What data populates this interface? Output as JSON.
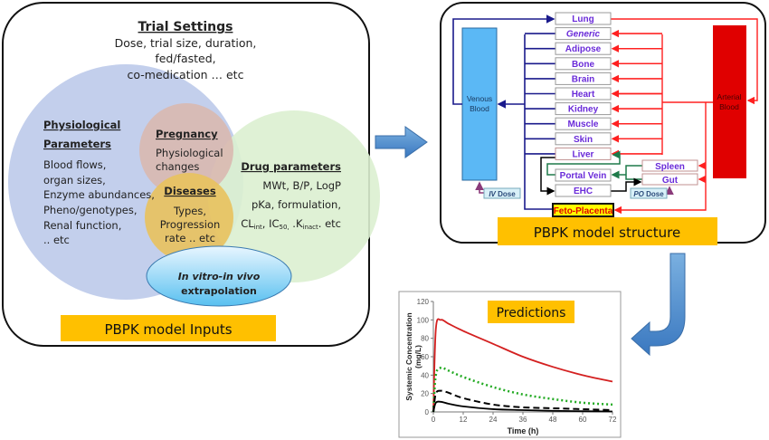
{
  "inputs_panel": {
    "trial_settings": {
      "title": "Trial Settings",
      "lines": [
        "Dose, trial size, duration,",
        "fed/fasted,",
        "co-medication  … etc"
      ]
    },
    "physiological": {
      "title_1": "Physiological",
      "title_2": "Parameters",
      "lines": [
        "Blood flows,",
        "organ sizes,",
        "Enzyme abundances,",
        "Pheno/genotypes,",
        "Renal function,",
        " .. etc"
      ]
    },
    "pregnancy": {
      "title": "Pregnancy",
      "lines": [
        "Physiological",
        "changes"
      ]
    },
    "diseases": {
      "title": "Diseases",
      "lines": [
        "Types,",
        "Progression",
        "rate .. etc"
      ]
    },
    "drug": {
      "title": "Drug parameters",
      "lines": [
        "MWt, B/P, LogP",
        "pKa, formulation,"
      ],
      "line3_cl": "CL",
      "line3_cl_sub": "int",
      "line3_ic": ", IC",
      "line3_ic_sub": "50,",
      "line3_k": " .K",
      "line3_k_sub": "inact",
      "line3_end": ". etc"
    },
    "ivive": {
      "line1": "In vitro-in vivo",
      "line2": "extrapolation"
    },
    "label": "PBPK model Inputs"
  },
  "structure_panel": {
    "venous_blood": [
      "Venous",
      "Blood"
    ],
    "arterial_blood": [
      "Arterial",
      "Blood"
    ],
    "organs": [
      "Lung",
      "Generic",
      "Adipose",
      "Bone",
      "Brain",
      "Heart",
      "Kidney",
      "Muscle",
      "Skin",
      "Liver"
    ],
    "portal_vein": "Portal Vein",
    "ehc": "EHC",
    "spleen": "Spleen",
    "gut": "Gut",
    "feto_placenta": "Feto-Placenta",
    "iv_dose": {
      "route": "IV",
      "label": " Dose"
    },
    "po_dose": {
      "route": "PO",
      "label": " Dose"
    },
    "label": "PBPK model structure",
    "colors": {
      "venous": "#5bb8f5",
      "arterial": "#e00000",
      "venous_line": "#1a1a8c",
      "arterial_line": "#ff2020",
      "portal_line": "#1f7a4a"
    }
  },
  "chart_data": {
    "type": "line",
    "title": "Predictions",
    "xlabel": "Time (h)",
    "ylabel": "Systemic Concentration (mg/L)",
    "xlim": [
      0,
      72
    ],
    "ylim": [
      0,
      120
    ],
    "xticks": [
      0,
      12,
      24,
      36,
      48,
      60,
      72
    ],
    "yticks": [
      0,
      20,
      40,
      60,
      80,
      100,
      120
    ],
    "grid": false,
    "x": [
      0,
      1,
      3,
      6,
      12,
      24,
      36,
      48,
      60,
      72
    ],
    "series": [
      {
        "color": "#d42020",
        "style": "solid",
        "values": [
          0,
          90,
          100,
          96,
          88,
          74,
          60,
          49,
          40,
          33
        ]
      },
      {
        "color": "#22aa22",
        "style": "dotted",
        "values": [
          0,
          40,
          48,
          45,
          38,
          27,
          19,
          14,
          10,
          8
        ]
      },
      {
        "color": "#000000",
        "style": "dashed",
        "values": [
          0,
          20,
          23,
          21,
          15,
          8,
          5,
          4,
          3,
          2
        ]
      },
      {
        "color": "#000000",
        "style": "solid",
        "values": [
          0,
          10,
          11,
          9,
          6,
          3,
          2,
          1.2,
          0.8,
          0.5
        ]
      }
    ]
  }
}
